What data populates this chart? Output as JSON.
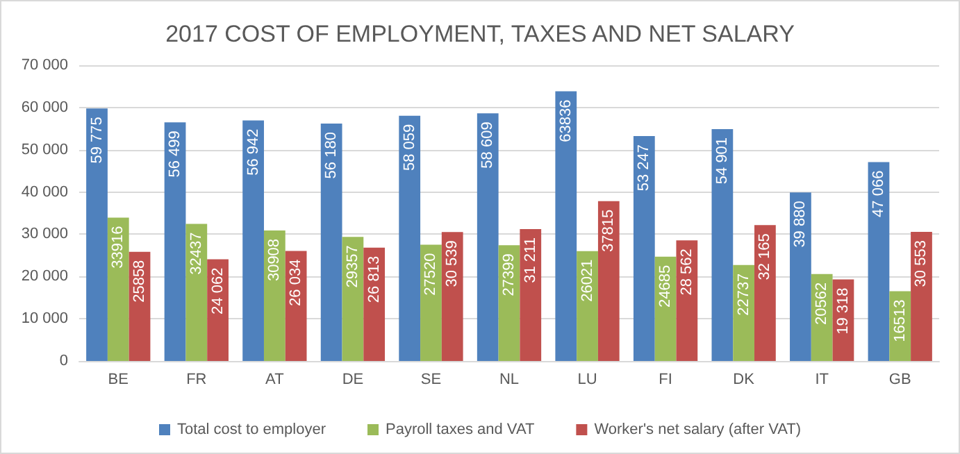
{
  "chart_data": {
    "type": "bar",
    "title": "2017 COST OF EMPLOYMENT, TAXES AND NET SALARY",
    "categories": [
      "BE",
      "FR",
      "AT",
      "DE",
      "SE",
      "NL",
      "LU",
      "FI",
      "DK",
      "IT",
      "GB"
    ],
    "series": [
      {
        "name": "Total cost to employer",
        "color": "#4f81bd",
        "values": [
          59775,
          56499,
          56942,
          56180,
          58059,
          58609,
          63836,
          53247,
          54901,
          39880,
          47066
        ],
        "value_labels": [
          "59 775",
          "56 499",
          "56 942",
          "56 180",
          "58 059",
          "58 609",
          "63836",
          "53 247",
          "54 901",
          "39 880",
          "47 066"
        ]
      },
      {
        "name": "Payroll taxes and VAT",
        "color": "#9bbb59",
        "values": [
          33916,
          32437,
          30908,
          29357,
          27520,
          27399,
          26021,
          24685,
          22737,
          20562,
          16513
        ],
        "value_labels": [
          "33916",
          "32437",
          "30908",
          "29357",
          "27520",
          "27399",
          "26021",
          "24685",
          "22737",
          "20562",
          "16513"
        ]
      },
      {
        "name": "Worker's net salary (after VAT)",
        "color": "#c0504d",
        "values": [
          25858,
          24062,
          26034,
          26813,
          30539,
          31211,
          37815,
          28562,
          32165,
          19318,
          30553
        ],
        "value_labels": [
          "25858",
          "24 062",
          "26 034",
          "26 813",
          "30 539",
          "31 211",
          "37815",
          "28 562",
          "32 165",
          "19 318",
          "30 553"
        ]
      }
    ],
    "ylim": [
      0,
      70000
    ],
    "yticks": [
      {
        "value": 0,
        "label": "0"
      },
      {
        "value": 10000,
        "label": "10 000"
      },
      {
        "value": 20000,
        "label": "20 000"
      },
      {
        "value": 30000,
        "label": "30 000"
      },
      {
        "value": 40000,
        "label": "40 000"
      },
      {
        "value": 50000,
        "label": "50 000"
      },
      {
        "value": 60000,
        "label": "60 000"
      },
      {
        "value": 70000,
        "label": "70 000"
      }
    ],
    "grid": "y",
    "legend": "bottom"
  }
}
